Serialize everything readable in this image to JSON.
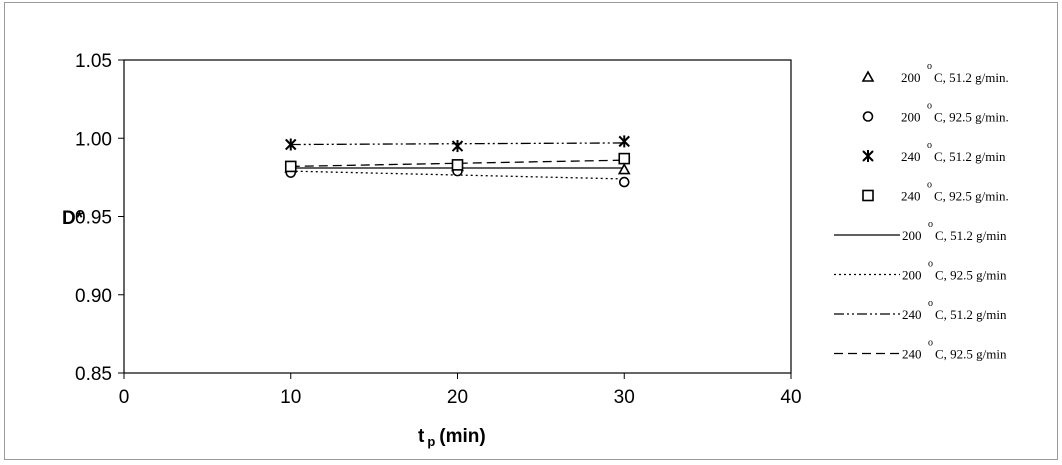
{
  "chart_data": {
    "type": "scatter",
    "title": "",
    "xlabel": "t",
    "xlabel_sub": "p",
    "xlabel_unit": "(min)",
    "ylabel": "D*",
    "xlim": [
      0,
      40
    ],
    "ylim": [
      0.85,
      1.05
    ],
    "x_ticks": [
      0,
      10,
      20,
      30,
      40
    ],
    "y_ticks": [
      0.85,
      0.9,
      0.95,
      1.0,
      1.05
    ],
    "x_tick_labels": [
      "0",
      "10",
      "20",
      "30",
      "40"
    ],
    "y_tick_labels": [
      "0.85",
      "0.90",
      "0.95",
      "1.00",
      "1.05"
    ],
    "grid": false,
    "legend_position": "right",
    "series": [
      {
        "name": "200 °C, 51.2 g/min.",
        "temp": "200",
        "rate": "C, 51.2 g/min.",
        "kind": "marker",
        "marker": "triangle",
        "x": [
          10,
          20,
          30
        ],
        "y": [
          0.981,
          0.982,
          0.98
        ]
      },
      {
        "name": "200 °C, 92.5 g/min.",
        "temp": "200",
        "rate": "C, 92.5 g/min.",
        "kind": "marker",
        "marker": "circle",
        "x": [
          10,
          20,
          30
        ],
        "y": [
          0.978,
          0.979,
          0.972
        ]
      },
      {
        "name": "240 °C, 51.2 g/min",
        "temp": "240",
        "rate": "C, 51.2 g/min",
        "kind": "marker",
        "marker": "asterisk",
        "x": [
          10,
          20,
          30
        ],
        "y": [
          0.996,
          0.995,
          0.998
        ]
      },
      {
        "name": "240 °C, 92.5 g/min.",
        "temp": "240",
        "rate": "C, 92.5 g/min.",
        "kind": "marker",
        "marker": "square",
        "x": [
          10,
          20,
          30
        ],
        "y": [
          0.982,
          0.983,
          0.987
        ]
      },
      {
        "name": "200 °C, 51.2 g/min",
        "temp": "200",
        "rate": "C, 51.2 g/min",
        "kind": "line",
        "dash": "solid",
        "x": [
          10,
          30
        ],
        "y": [
          0.981,
          0.981
        ]
      },
      {
        "name": "200 °C, 92.5 g/min",
        "temp": "200",
        "rate": "C, 92.5 g/min",
        "kind": "line",
        "dash": "dotted",
        "x": [
          10,
          30
        ],
        "y": [
          0.979,
          0.974
        ]
      },
      {
        "name": "240 °C, 51.2 g/min",
        "temp": "240",
        "rate": "C, 51.2 g/min",
        "kind": "line",
        "dash": "dashdotdot",
        "x": [
          10,
          30
        ],
        "y": [
          0.996,
          0.997
        ]
      },
      {
        "name": "240 °C, 92.5 g/min",
        "temp": "240",
        "rate": "C, 92.5 g/min",
        "kind": "line",
        "dash": "dashed",
        "x": [
          10,
          30
        ],
        "y": [
          0.982,
          0.986
        ]
      }
    ],
    "degree_symbol": "o",
    "colors": {
      "marks": "#000000",
      "frame": "#9a9a9a",
      "background": "#ffffff"
    }
  }
}
